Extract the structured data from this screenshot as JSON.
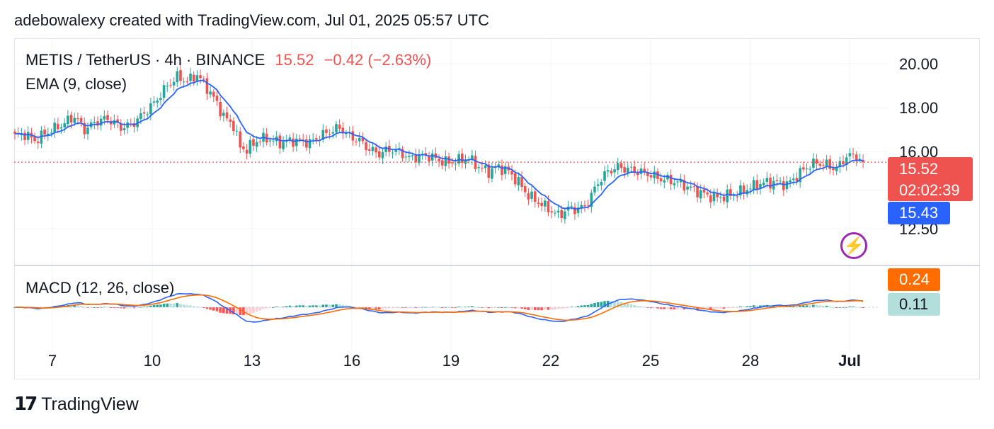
{
  "header": {
    "caption": "adebowalexy created with TradingView.com, Jul 01, 2025 05:57 UTC"
  },
  "legend": {
    "symbol": "METIS / TetherUS · 4h · BINANCE",
    "last": "15.52",
    "change": "−0.42 (−2.63%)",
    "ema": "EMA (9, close)",
    "macd": "MACD (12, 26, close)"
  },
  "price_tags": {
    "last_price": "15.52",
    "countdown": "02:02:39",
    "ema_value": "15.43",
    "macd_value": "0.24",
    "signal_value": "0.11"
  },
  "colors": {
    "up": "#26a69a",
    "down": "#ef5350",
    "ema": "#2962ff",
    "macd_line": "#2962ff",
    "signal_line": "#ff6d00",
    "hist_up_strong": "#26a69a",
    "hist_up_weak": "#b2dfdb",
    "hist_down_strong": "#ff5252",
    "hist_down_weak": "#ffcdd2"
  },
  "icons": {
    "alert": "lightning-bolt-icon",
    "brand": "tradingview-logo-icon"
  },
  "footer": {
    "brand": "TradingView"
  },
  "chart_data": {
    "type": "candlestick",
    "interval": "4h",
    "price_axis": {
      "ticks": [
        "20.00",
        "18.00",
        "16.00",
        "12.50"
      ],
      "ylim": [
        11.9,
        21.0
      ],
      "scale": "linear"
    },
    "x_axis": {
      "ticks": [
        "7",
        "10",
        "13",
        "16",
        "19",
        "22",
        "25",
        "28",
        "Jul"
      ]
    },
    "grid": true,
    "anchors": [
      [
        0,
        16.7
      ],
      [
        3,
        16.8
      ],
      [
        6,
        16.5
      ],
      [
        10,
        16.9
      ],
      [
        14,
        17.2
      ],
      [
        18,
        17.6
      ],
      [
        21,
        17.0
      ],
      [
        25,
        17.4
      ],
      [
        28,
        17.5
      ],
      [
        32,
        17.1
      ],
      [
        35,
        17.2
      ],
      [
        38,
        17.6
      ],
      [
        42,
        18.2
      ],
      [
        46,
        19.0
      ],
      [
        49,
        19.4
      ],
      [
        52,
        19.2
      ],
      [
        55,
        19.5
      ],
      [
        58,
        18.9
      ],
      [
        61,
        18.2
      ],
      [
        63,
        17.6
      ],
      [
        66,
        17.2
      ],
      [
        68,
        16.2
      ],
      [
        70,
        16.1
      ],
      [
        73,
        16.5
      ],
      [
        76,
        16.6
      ],
      [
        80,
        16.4
      ],
      [
        83,
        16.5
      ],
      [
        86,
        16.5
      ],
      [
        89,
        16.4
      ],
      [
        92,
        16.7
      ],
      [
        95,
        16.9
      ],
      [
        98,
        17.1
      ],
      [
        101,
        16.7
      ],
      [
        104,
        16.5
      ],
      [
        107,
        16.1
      ],
      [
        110,
        15.9
      ],
      [
        113,
        16.1
      ],
      [
        116,
        16.0
      ],
      [
        119,
        15.7
      ],
      [
        122,
        15.8
      ],
      [
        125,
        15.8
      ],
      [
        128,
        15.6
      ],
      [
        131,
        15.5
      ],
      [
        134,
        15.6
      ],
      [
        137,
        15.7
      ],
      [
        140,
        15.3
      ],
      [
        143,
        15.1
      ],
      [
        146,
        15.3
      ],
      [
        149,
        15.1
      ],
      [
        152,
        14.6
      ],
      [
        155,
        14.0
      ],
      [
        158,
        13.7
      ],
      [
        161,
        13.4
      ],
      [
        164,
        13.1
      ],
      [
        167,
        13.4
      ],
      [
        170,
        13.4
      ],
      [
        172,
        13.5
      ],
      [
        174,
        14.0
      ],
      [
        176,
        14.6
      ],
      [
        179,
        15.1
      ],
      [
        182,
        15.3
      ],
      [
        185,
        15.2
      ],
      [
        188,
        15.1
      ],
      [
        191,
        15.0
      ],
      [
        194,
        14.8
      ],
      [
        197,
        14.7
      ],
      [
        200,
        14.6
      ],
      [
        203,
        14.4
      ],
      [
        206,
        14.2
      ],
      [
        209,
        14.0
      ],
      [
        212,
        13.9
      ],
      [
        215,
        14.0
      ],
      [
        218,
        14.1
      ],
      [
        221,
        14.3
      ],
      [
        224,
        14.5
      ],
      [
        227,
        14.6
      ],
      [
        230,
        14.6
      ],
      [
        233,
        14.5
      ],
      [
        236,
        14.9
      ],
      [
        239,
        15.3
      ],
      [
        242,
        15.5
      ],
      [
        245,
        15.4
      ],
      [
        248,
        15.2
      ],
      [
        251,
        15.8
      ],
      [
        254,
        15.8
      ],
      [
        256,
        15.52
      ]
    ],
    "last_price": 15.52,
    "last_ema": 15.43,
    "macd": 0.24,
    "signal": 0.11,
    "series": [
      {
        "name": "EMA (9, close)",
        "kind": "ema",
        "period": 9
      },
      {
        "name": "MACD (12, 26, close)",
        "kind": "macd",
        "fast": 12,
        "slow": 26
      }
    ]
  }
}
